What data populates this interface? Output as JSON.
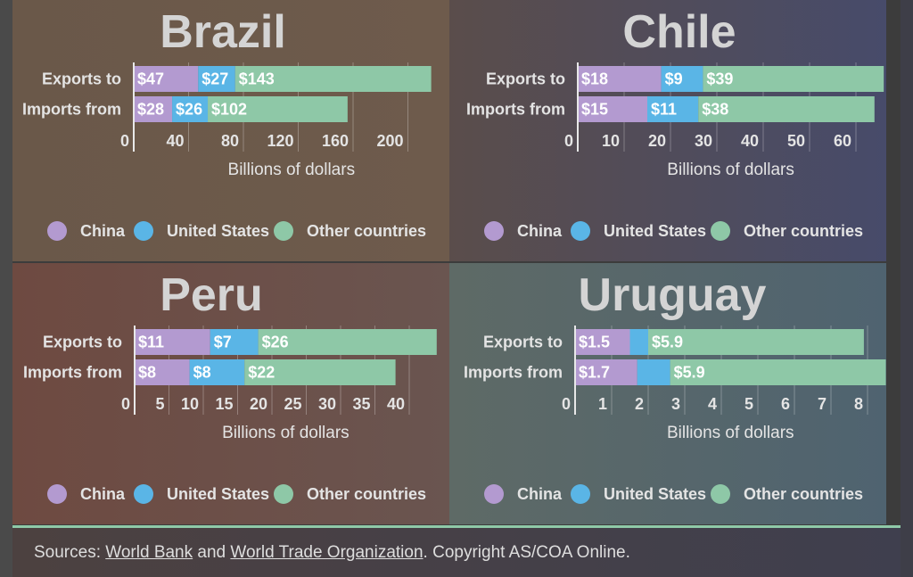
{
  "colors": {
    "china": "#b39ad0",
    "united_states": "#5ab5e6",
    "other_countries": "#8ec8a7"
  },
  "chart_data": [
    {
      "type": "bar",
      "orientation": "horizontal",
      "stacked": true,
      "title": "Brazil",
      "categories": [
        "Exports to",
        "Imports from"
      ],
      "series": [
        {
          "name": "China",
          "values": [
            47,
            28
          ],
          "labels": [
            "$47",
            "$28"
          ]
        },
        {
          "name": "United States",
          "values": [
            27,
            26
          ],
          "labels": [
            "$27",
            "$26"
          ]
        },
        {
          "name": "Other countries",
          "values": [
            143,
            102
          ],
          "labels": [
            "$143",
            "$102"
          ]
        }
      ],
      "xlabel": "Billions of dollars",
      "xticks": [
        0,
        40,
        80,
        120,
        160,
        200
      ],
      "xlim": [
        0,
        230
      ],
      "grid": true,
      "legend": [
        "China",
        "United States",
        "Other countries"
      ]
    },
    {
      "type": "bar",
      "orientation": "horizontal",
      "stacked": true,
      "title": "Chile",
      "categories": [
        "Exports to",
        "Imports from"
      ],
      "series": [
        {
          "name": "China",
          "values": [
            18,
            15
          ],
          "labels": [
            "$18",
            "$15"
          ]
        },
        {
          "name": "United States",
          "values": [
            9,
            11
          ],
          "labels": [
            "$9",
            "$11"
          ]
        },
        {
          "name": "Other countries",
          "values": [
            39,
            38
          ],
          "labels": [
            "$39",
            "$38"
          ]
        }
      ],
      "xlabel": "Billions of dollars",
      "xticks": [
        0,
        10,
        20,
        30,
        40,
        50,
        60
      ],
      "xlim": [
        0,
        66
      ],
      "grid": true,
      "legend": [
        "China",
        "United States",
        "Other countries"
      ]
    },
    {
      "type": "bar",
      "orientation": "horizontal",
      "stacked": true,
      "title": "Peru",
      "categories": [
        "Exports to",
        "Imports from"
      ],
      "series": [
        {
          "name": "China",
          "values": [
            11,
            8
          ],
          "labels": [
            "$11",
            "$8"
          ]
        },
        {
          "name": "United States",
          "values": [
            7,
            8
          ],
          "labels": [
            "$7",
            "$8"
          ]
        },
        {
          "name": "Other countries",
          "values": [
            26,
            22
          ],
          "labels": [
            "$26",
            "$22"
          ]
        }
      ],
      "xlabel": "Billions of dollars",
      "xticks": [
        0,
        5,
        10,
        15,
        20,
        25,
        30,
        35,
        40
      ],
      "xlim": [
        0,
        44
      ],
      "grid": true,
      "legend": [
        "China",
        "United States",
        "Other countries"
      ]
    },
    {
      "type": "bar",
      "orientation": "horizontal",
      "stacked": true,
      "title": "Uruguay",
      "categories": [
        "Exports to",
        "Imports from"
      ],
      "series": [
        {
          "name": "China",
          "values": [
            1.5,
            1.7
          ],
          "labels": [
            "$1.5",
            "$1.7"
          ]
        },
        {
          "name": "United States",
          "values": [
            0.5,
            0.9
          ],
          "labels": [
            "",
            ""
          ]
        },
        {
          "name": "Other countries",
          "values": [
            5.9,
            5.9
          ],
          "labels": [
            "$5.9",
            "$5.9"
          ]
        }
      ],
      "xlabel": "Billions of dollars",
      "xticks": [
        0,
        1,
        2,
        3,
        4,
        5,
        6,
        7,
        8
      ],
      "xlim": [
        0,
        8.5
      ],
      "grid": true,
      "legend": [
        "China",
        "United States",
        "Other countries"
      ]
    }
  ],
  "footer": {
    "prefix": "Sources: ",
    "link1": "World Bank",
    "and": " and ",
    "link2": "World Trade Organization",
    "suffix": ". Copyright AS/COA Online."
  }
}
